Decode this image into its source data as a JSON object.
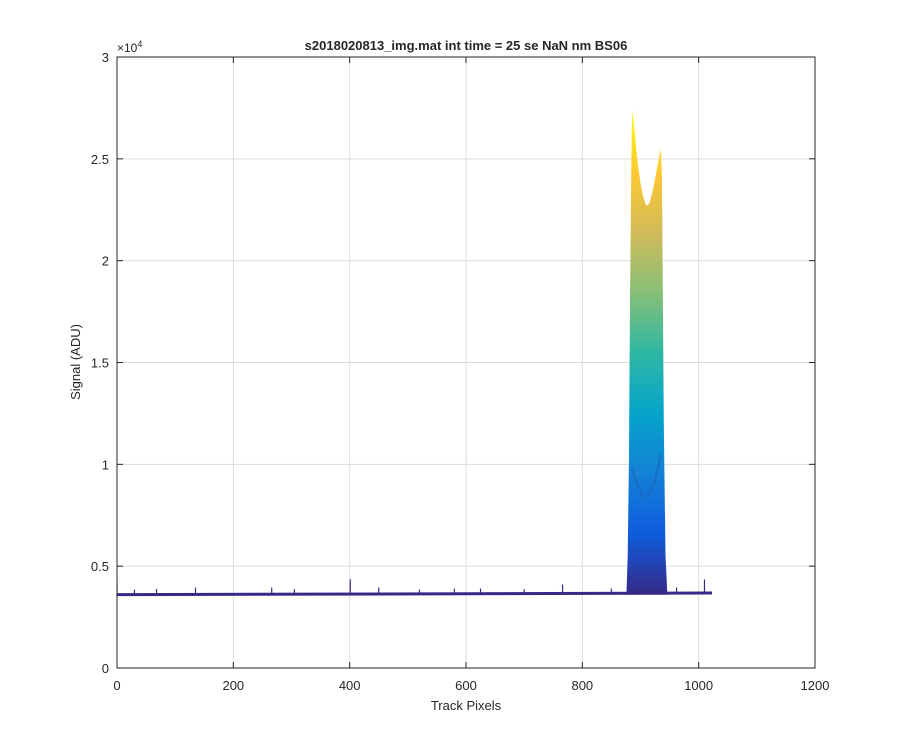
{
  "chart_data": {
    "type": "area",
    "title": "s2018020813_img.mat int time = 25 se  NaN nm BS06",
    "xlabel": "Track Pixels",
    "ylabel": "Signal (ADU)",
    "y_exponent_label": "×10",
    "y_exponent_power": "4",
    "xlim": [
      0,
      1200
    ],
    "ylim": [
      0,
      30000
    ],
    "x_ticks": [
      0,
      200,
      400,
      600,
      800,
      1000,
      1200
    ],
    "x_tick_labels": [
      "0",
      "200",
      "400",
      "600",
      "800",
      "1000",
      "1200"
    ],
    "y_ticks": [
      0,
      5000,
      10000,
      15000,
      20000,
      25000,
      30000
    ],
    "y_tick_labels": [
      "0",
      "0.5",
      "1",
      "1.5",
      "2",
      "2.5",
      "3"
    ],
    "grid": true,
    "colormap": [
      "#352a87",
      "#0f5cdd",
      "#1481d6",
      "#06a4ca",
      "#2eb7a4",
      "#87bf77",
      "#d1bb59",
      "#fec832",
      "#f9fb0e"
    ],
    "baseline": {
      "x_start": 0,
      "x_end": 1023,
      "y_start": 3600,
      "y_end": 3680,
      "spikes": [
        {
          "x": 0,
          "y": 4200
        },
        {
          "x": 30,
          "y": 3850
        },
        {
          "x": 68,
          "y": 3880
        },
        {
          "x": 135,
          "y": 3950
        },
        {
          "x": 266,
          "y": 3950
        },
        {
          "x": 305,
          "y": 3870
        },
        {
          "x": 401,
          "y": 4350
        },
        {
          "x": 450,
          "y": 3950
        },
        {
          "x": 520,
          "y": 3850
        },
        {
          "x": 580,
          "y": 3900
        },
        {
          "x": 625,
          "y": 3900
        },
        {
          "x": 700,
          "y": 3870
        },
        {
          "x": 766,
          "y": 4100
        },
        {
          "x": 850,
          "y": 3900
        },
        {
          "x": 962,
          "y": 3950
        },
        {
          "x": 1010,
          "y": 4350
        }
      ]
    },
    "peak": {
      "profile": [
        {
          "x": 876,
          "y": 3700
        },
        {
          "x": 878,
          "y": 5500
        },
        {
          "x": 880,
          "y": 10000
        },
        {
          "x": 882,
          "y": 18000
        },
        {
          "x": 884,
          "y": 24000
        },
        {
          "x": 885,
          "y": 26500
        },
        {
          "x": 886,
          "y": 27400
        },
        {
          "x": 888,
          "y": 26900
        },
        {
          "x": 891,
          "y": 26000
        },
        {
          "x": 895,
          "y": 24800
        },
        {
          "x": 900,
          "y": 23800
        },
        {
          "x": 905,
          "y": 23100
        },
        {
          "x": 910,
          "y": 22700
        },
        {
          "x": 915,
          "y": 22800
        },
        {
          "x": 920,
          "y": 23300
        },
        {
          "x": 925,
          "y": 24000
        },
        {
          "x": 930,
          "y": 24800
        },
        {
          "x": 935,
          "y": 25500
        },
        {
          "x": 937,
          "y": 24000
        },
        {
          "x": 940,
          "y": 12000
        },
        {
          "x": 943,
          "y": 5500
        },
        {
          "x": 946,
          "y": 3700
        }
      ],
      "inner_trough": [
        {
          "x": 884,
          "y": 9800
        },
        {
          "x": 895,
          "y": 9000
        },
        {
          "x": 905,
          "y": 8400
        },
        {
          "x": 915,
          "y": 8500
        },
        {
          "x": 925,
          "y": 9200
        },
        {
          "x": 935,
          "y": 10500
        }
      ]
    }
  }
}
